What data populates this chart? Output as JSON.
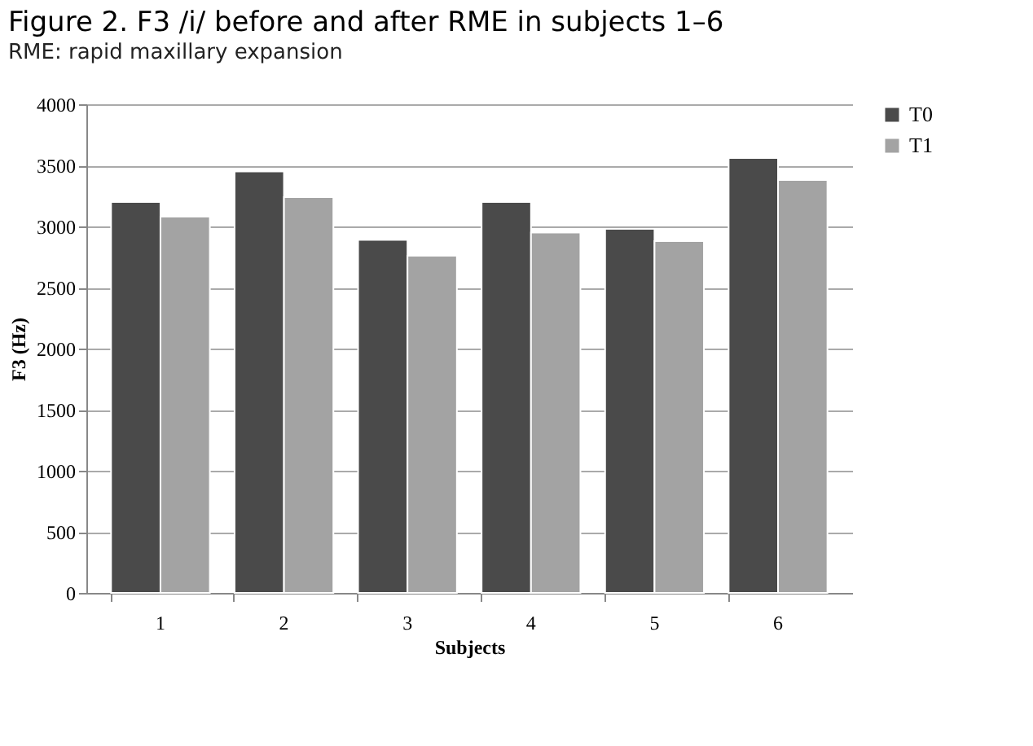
{
  "chart_data": {
    "type": "bar",
    "title": "Figure 2. F3 /i/ before and after RME in subjects 1–6",
    "subtitle": "RME: rapid maxillary expansion",
    "xlabel": "Subjects",
    "ylabel": "F3 (Hz)",
    "categories": [
      "1",
      "2",
      "3",
      "4",
      "5",
      "6"
    ],
    "series": [
      {
        "name": "T0",
        "color": "#4a4a4a",
        "values": [
          3200,
          3450,
          2890,
          3200,
          2980,
          3560
        ]
      },
      {
        "name": "T1",
        "color": "#a3a3a3",
        "values": [
          3080,
          3240,
          2760,
          2950,
          2880,
          3380
        ]
      }
    ],
    "ylim": [
      0,
      4000
    ],
    "yticks": [
      0,
      500,
      1000,
      1500,
      2000,
      2500,
      3000,
      3500,
      4000
    ],
    "grid": "y",
    "legend": "right"
  }
}
